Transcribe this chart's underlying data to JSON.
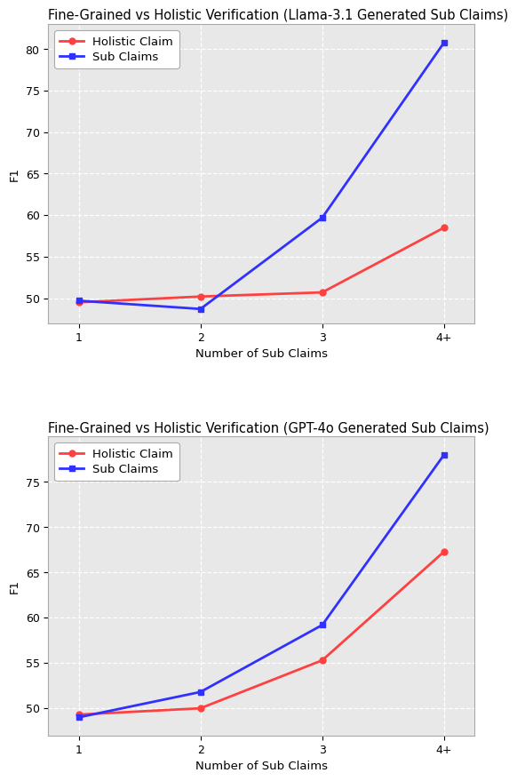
{
  "plot1": {
    "title": "Fine-Grained vs Holistic Verification (Llama-3.1 Generated Sub Claims)",
    "holistic": [
      49.5,
      50.2,
      50.7,
      58.5
    ],
    "subclaims": [
      49.7,
      48.7,
      59.7,
      80.8
    ],
    "x_labels": [
      "1",
      "2",
      "3",
      "4+"
    ],
    "ylabel": "F1",
    "xlabel": "Number of Sub Claims",
    "ylim": [
      47,
      83
    ],
    "yticks": [
      50,
      55,
      60,
      65,
      70,
      75,
      80
    ]
  },
  "plot2": {
    "title": "Fine-Grained vs Holistic Verification (GPT-4o Generated Sub Claims)",
    "holistic": [
      49.3,
      50.0,
      55.3,
      67.3
    ],
    "subclaims": [
      49.0,
      51.8,
      59.2,
      78.0
    ],
    "x_labels": [
      "1",
      "2",
      "3",
      "4+"
    ],
    "ylabel": "F1",
    "xlabel": "Number of Sub Claims",
    "ylim": [
      47,
      80
    ],
    "yticks": [
      50,
      55,
      60,
      65,
      70,
      75
    ]
  },
  "holistic_color": "#ff4040",
  "subclaims_color": "#3030ff",
  "legend_holistic": "Holistic Claim",
  "legend_subclaims": "Sub Claims",
  "plot_bg_color": "#e8e8e8",
  "grid_color": "#ffffff",
  "title_fontsize": 10.5,
  "label_fontsize": 9.5,
  "tick_fontsize": 9,
  "legend_fontsize": 9.5,
  "linewidth": 2.0,
  "markersize": 5
}
